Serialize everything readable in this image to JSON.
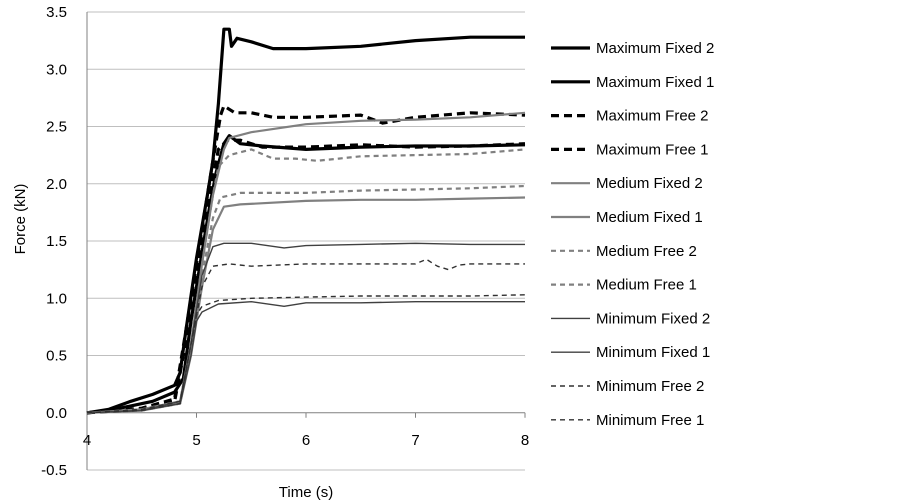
{
  "chart_data": {
    "type": "line",
    "title": "",
    "xlabel": "Time (s)",
    "ylabel": "Force (kN)",
    "xlim": [
      4,
      8
    ],
    "ylim": [
      -0.5,
      3.5
    ],
    "x_ticks": [
      "4",
      "5",
      "6",
      "7",
      "8"
    ],
    "y_ticks": [
      "3.5",
      "3.0",
      "2.5",
      "2.0",
      "1.5",
      "1.0",
      "0.5",
      "0.0",
      "-0.5"
    ],
    "grid": "horizontal",
    "legend_position": "right",
    "series": [
      {
        "name": "Maximum Fixed 2",
        "color": "#000000",
        "style": "solid",
        "weight": "heavy",
        "points": [
          [
            4.0,
            0.0
          ],
          [
            4.2,
            0.03
          ],
          [
            4.4,
            0.1
          ],
          [
            4.6,
            0.16
          ],
          [
            4.8,
            0.24
          ],
          [
            4.85,
            0.35
          ],
          [
            4.9,
            0.7
          ],
          [
            5.0,
            1.35
          ],
          [
            5.1,
            1.9
          ],
          [
            5.15,
            2.2
          ],
          [
            5.2,
            2.7
          ],
          [
            5.25,
            3.35
          ],
          [
            5.3,
            3.35
          ],
          [
            5.32,
            3.2
          ],
          [
            5.37,
            3.27
          ],
          [
            5.5,
            3.24
          ],
          [
            5.7,
            3.18
          ],
          [
            6.0,
            3.18
          ],
          [
            6.5,
            3.2
          ],
          [
            7.0,
            3.25
          ],
          [
            7.5,
            3.28
          ],
          [
            8.0,
            3.28
          ]
        ]
      },
      {
        "name": "Maximum Fixed 1",
        "color": "#000000",
        "style": "solid",
        "weight": "heavy",
        "points": [
          [
            4.0,
            0.0
          ],
          [
            4.2,
            0.02
          ],
          [
            4.4,
            0.06
          ],
          [
            4.6,
            0.1
          ],
          [
            4.8,
            0.18
          ],
          [
            4.88,
            0.3
          ],
          [
            4.95,
            0.8
          ],
          [
            5.05,
            1.4
          ],
          [
            5.12,
            1.8
          ],
          [
            5.18,
            2.1
          ],
          [
            5.25,
            2.35
          ],
          [
            5.3,
            2.42
          ],
          [
            5.4,
            2.35
          ],
          [
            5.6,
            2.33
          ],
          [
            6.0,
            2.3
          ],
          [
            6.5,
            2.32
          ],
          [
            7.0,
            2.33
          ],
          [
            7.5,
            2.33
          ],
          [
            8.0,
            2.34
          ]
        ]
      },
      {
        "name": "Maximum Free 2",
        "color": "#000000",
        "style": "dash",
        "weight": "heavy",
        "points": [
          [
            4.0,
            0.0
          ],
          [
            4.5,
            0.04
          ],
          [
            4.8,
            0.12
          ],
          [
            4.9,
            0.7
          ],
          [
            5.0,
            1.3
          ],
          [
            5.1,
            1.9
          ],
          [
            5.15,
            2.2
          ],
          [
            5.22,
            2.6
          ],
          [
            5.25,
            2.68
          ],
          [
            5.35,
            2.62
          ],
          [
            5.5,
            2.62
          ],
          [
            5.7,
            2.58
          ],
          [
            6.0,
            2.58
          ],
          [
            6.5,
            2.6
          ],
          [
            6.7,
            2.53
          ],
          [
            7.0,
            2.58
          ],
          [
            7.5,
            2.62
          ],
          [
            8.0,
            2.6
          ]
        ]
      },
      {
        "name": "Maximum Free 1",
        "color": "#000000",
        "style": "dash",
        "weight": "heavy",
        "points": [
          [
            4.0,
            0.0
          ],
          [
            4.5,
            0.03
          ],
          [
            4.8,
            0.1
          ],
          [
            4.9,
            0.6
          ],
          [
            5.0,
            1.2
          ],
          [
            5.1,
            1.8
          ],
          [
            5.2,
            2.3
          ],
          [
            5.28,
            2.38
          ],
          [
            5.4,
            2.38
          ],
          [
            5.6,
            2.32
          ],
          [
            6.0,
            2.32
          ],
          [
            6.5,
            2.34
          ],
          [
            7.0,
            2.32
          ],
          [
            7.5,
            2.33
          ],
          [
            8.0,
            2.35
          ]
        ]
      },
      {
        "name": "Medium Fixed 2",
        "color": "#808080",
        "style": "solid",
        "weight": "medium",
        "points": [
          [
            4.0,
            0.0
          ],
          [
            4.5,
            0.03
          ],
          [
            4.85,
            0.1
          ],
          [
            4.95,
            0.6
          ],
          [
            5.05,
            1.3
          ],
          [
            5.15,
            1.9
          ],
          [
            5.25,
            2.3
          ],
          [
            5.3,
            2.4
          ],
          [
            5.5,
            2.45
          ],
          [
            6.0,
            2.52
          ],
          [
            6.5,
            2.55
          ],
          [
            7.0,
            2.56
          ],
          [
            7.5,
            2.58
          ],
          [
            8.0,
            2.62
          ]
        ]
      },
      {
        "name": "Medium Fixed 1",
        "color": "#808080",
        "style": "solid",
        "weight": "medium",
        "points": [
          [
            4.0,
            0.0
          ],
          [
            4.5,
            0.02
          ],
          [
            4.85,
            0.08
          ],
          [
            4.95,
            0.5
          ],
          [
            5.05,
            1.1
          ],
          [
            5.15,
            1.6
          ],
          [
            5.25,
            1.8
          ],
          [
            5.4,
            1.82
          ],
          [
            6.0,
            1.85
          ],
          [
            6.5,
            1.86
          ],
          [
            7.0,
            1.86
          ],
          [
            7.5,
            1.87
          ],
          [
            8.0,
            1.88
          ]
        ]
      },
      {
        "name": "Medium Free 2",
        "color": "#808080",
        "style": "dash",
        "weight": "medium",
        "points": [
          [
            4.0,
            0.0
          ],
          [
            4.5,
            0.03
          ],
          [
            4.85,
            0.1
          ],
          [
            4.95,
            0.6
          ],
          [
            5.05,
            1.3
          ],
          [
            5.15,
            1.9
          ],
          [
            5.2,
            2.15
          ],
          [
            5.3,
            2.25
          ],
          [
            5.5,
            2.3
          ],
          [
            5.7,
            2.22
          ],
          [
            5.9,
            2.22
          ],
          [
            6.1,
            2.2
          ],
          [
            6.3,
            2.22
          ],
          [
            6.5,
            2.24
          ],
          [
            7.0,
            2.25
          ],
          [
            7.5,
            2.26
          ],
          [
            8.0,
            2.3
          ]
        ]
      },
      {
        "name": "Medium Free 1",
        "color": "#808080",
        "style": "dash",
        "weight": "medium",
        "points": [
          [
            4.0,
            0.0
          ],
          [
            4.5,
            0.02
          ],
          [
            4.85,
            0.08
          ],
          [
            4.95,
            0.55
          ],
          [
            5.05,
            1.2
          ],
          [
            5.15,
            1.7
          ],
          [
            5.22,
            1.88
          ],
          [
            5.4,
            1.92
          ],
          [
            6.0,
            1.92
          ],
          [
            6.5,
            1.94
          ],
          [
            7.0,
            1.95
          ],
          [
            7.5,
            1.96
          ],
          [
            8.0,
            1.98
          ]
        ]
      },
      {
        "name": "Minimum Fixed 2",
        "color": "#404040",
        "style": "solid",
        "weight": "light",
        "points": [
          [
            4.0,
            0.0
          ],
          [
            4.5,
            0.02
          ],
          [
            4.85,
            0.1
          ],
          [
            4.95,
            0.6
          ],
          [
            5.05,
            1.2
          ],
          [
            5.15,
            1.45
          ],
          [
            5.25,
            1.48
          ],
          [
            5.5,
            1.48
          ],
          [
            5.8,
            1.44
          ],
          [
            6.0,
            1.46
          ],
          [
            6.5,
            1.47
          ],
          [
            7.0,
            1.48
          ],
          [
            7.5,
            1.47
          ],
          [
            8.0,
            1.47
          ]
        ]
      },
      {
        "name": "Minimum Fixed 1",
        "color": "#404040",
        "style": "solid",
        "weight": "light",
        "points": [
          [
            4.0,
            0.0
          ],
          [
            4.5,
            0.02
          ],
          [
            4.85,
            0.08
          ],
          [
            4.95,
            0.5
          ],
          [
            5.0,
            0.8
          ],
          [
            5.05,
            0.88
          ],
          [
            5.2,
            0.95
          ],
          [
            5.5,
            0.97
          ],
          [
            5.8,
            0.93
          ],
          [
            6.0,
            0.96
          ],
          [
            6.5,
            0.96
          ],
          [
            7.0,
            0.97
          ],
          [
            7.5,
            0.97
          ],
          [
            8.0,
            0.97
          ]
        ]
      },
      {
        "name": "Minimum Free 2",
        "color": "#303030",
        "style": "dash",
        "weight": "light",
        "points": [
          [
            4.0,
            0.0
          ],
          [
            4.5,
            0.03
          ],
          [
            4.85,
            0.1
          ],
          [
            4.95,
            0.6
          ],
          [
            5.05,
            1.1
          ],
          [
            5.15,
            1.28
          ],
          [
            5.3,
            1.3
          ],
          [
            5.5,
            1.28
          ],
          [
            6.0,
            1.3
          ],
          [
            6.5,
            1.3
          ],
          [
            7.0,
            1.3
          ],
          [
            7.1,
            1.34
          ],
          [
            7.2,
            1.28
          ],
          [
            7.3,
            1.25
          ],
          [
            7.4,
            1.29
          ],
          [
            7.5,
            1.3
          ],
          [
            8.0,
            1.3
          ]
        ]
      },
      {
        "name": "Minimum Free 1",
        "color": "#303030",
        "style": "dash",
        "weight": "light",
        "points": [
          [
            4.0,
            0.0
          ],
          [
            4.5,
            0.02
          ],
          [
            4.85,
            0.08
          ],
          [
            4.95,
            0.6
          ],
          [
            5.0,
            0.85
          ],
          [
            5.05,
            0.93
          ],
          [
            5.2,
            0.98
          ],
          [
            5.5,
            1.0
          ],
          [
            6.0,
            1.01
          ],
          [
            6.5,
            1.02
          ],
          [
            7.0,
            1.02
          ],
          [
            7.5,
            1.02
          ],
          [
            8.0,
            1.03
          ]
        ]
      }
    ]
  }
}
